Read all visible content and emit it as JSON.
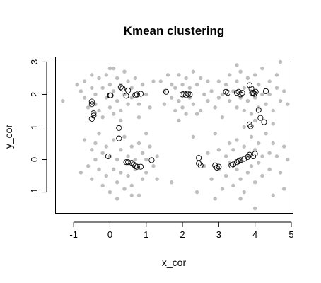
{
  "chart_data": {
    "type": "scatter",
    "title": "Kmean clustering",
    "xlabel": "x_cor",
    "ylabel": "y_cor",
    "xlim": [
      -1.5,
      5.05
    ],
    "ylim": [
      -1.65,
      3.15
    ],
    "xticks": [
      -1,
      0,
      1,
      2,
      3,
      4,
      5
    ],
    "yticks": [
      -1,
      0,
      1,
      2,
      3
    ],
    "grid": false,
    "series": [
      {
        "marker": "filled-circle",
        "color": "#bebebe",
        "points": [
          [
            -1.3,
            1.8
          ],
          [
            -0.9,
            2.3
          ],
          [
            -0.8,
            2.1
          ],
          [
            -0.7,
            2.4
          ],
          [
            -0.7,
            1.9
          ],
          [
            -0.6,
            1.6
          ],
          [
            -0.5,
            2.6
          ],
          [
            -0.5,
            2.2
          ],
          [
            -0.4,
            1.7
          ],
          [
            -0.4,
            2.0
          ],
          [
            -0.3,
            2.5
          ],
          [
            -0.3,
            1.5
          ],
          [
            -0.2,
            2.2
          ],
          [
            -0.2,
            1.3
          ],
          [
            -0.1,
            1.9
          ],
          [
            -0.1,
            2.6
          ],
          [
            0.0,
            2.3
          ],
          [
            0.0,
            1.6
          ],
          [
            0.0,
            2.8
          ],
          [
            0.1,
            2.1
          ],
          [
            0.1,
            1.4
          ],
          [
            0.1,
            2.8
          ],
          [
            0.2,
            2.5
          ],
          [
            0.2,
            1.8
          ],
          [
            0.3,
            2.3
          ],
          [
            0.3,
            1.5
          ],
          [
            0.4,
            2.7
          ],
          [
            0.4,
            2.0
          ],
          [
            0.5,
            2.4
          ],
          [
            0.5,
            1.7
          ],
          [
            0.6,
            2.2
          ],
          [
            0.6,
            1.9
          ],
          [
            0.7,
            2.5
          ],
          [
            0.8,
            1.7
          ],
          [
            0.9,
            2.3
          ],
          [
            1.0,
            2.0
          ],
          [
            1.1,
            1.6
          ],
          [
            1.2,
            2.4
          ],
          [
            0.8,
            1.3
          ],
          [
            0.3,
            1.2
          ],
          [
            1.4,
            2.4
          ],
          [
            1.5,
            2.1
          ],
          [
            1.5,
            1.7
          ],
          [
            1.6,
            2.6
          ],
          [
            1.7,
            1.9
          ],
          [
            1.7,
            2.3
          ],
          [
            1.8,
            1.5
          ],
          [
            1.8,
            2.2
          ],
          [
            1.9,
            2.6
          ],
          [
            1.9,
            1.8
          ],
          [
            2.0,
            2.3
          ],
          [
            2.0,
            1.6
          ],
          [
            2.1,
            2.5
          ],
          [
            2.1,
            1.4
          ],
          [
            2.2,
            2.2
          ],
          [
            2.2,
            1.9
          ],
          [
            2.3,
            2.7
          ],
          [
            2.3,
            1.7
          ],
          [
            2.4,
            2.3
          ],
          [
            2.5,
            1.5
          ],
          [
            2.5,
            2.5
          ],
          [
            2.6,
            2.0
          ],
          [
            2.7,
            1.8
          ],
          [
            2.7,
            2.4
          ],
          [
            2.8,
            2.1
          ],
          [
            2.9,
            1.6
          ],
          [
            3.0,
            2.4
          ],
          [
            3.0,
            1.9
          ],
          [
            1.9,
            1.2
          ],
          [
            2.4,
            1.4
          ],
          [
            3.1,
            2.0
          ],
          [
            3.2,
            2.3
          ],
          [
            3.3,
            1.8
          ],
          [
            3.3,
            2.6
          ],
          [
            3.4,
            2.1
          ],
          [
            3.5,
            1.6
          ],
          [
            3.5,
            2.4
          ],
          [
            3.6,
            2.7
          ],
          [
            3.6,
            1.9
          ],
          [
            3.7,
            2.2
          ],
          [
            3.7,
            1.5
          ],
          [
            3.8,
            2.5
          ],
          [
            3.8,
            1.8
          ],
          [
            3.9,
            2.1
          ],
          [
            3.9,
            1.4
          ],
          [
            4.0,
            2.6
          ],
          [
            4.0,
            1.9
          ],
          [
            4.1,
            2.3
          ],
          [
            4.1,
            1.6
          ],
          [
            4.2,
            2.0
          ],
          [
            4.2,
            2.8
          ],
          [
            4.3,
            1.7
          ],
          [
            4.4,
            2.4
          ],
          [
            4.4,
            2.0
          ],
          [
            4.5,
            1.5
          ],
          [
            4.6,
            2.2
          ],
          [
            4.6,
            2.6
          ],
          [
            4.7,
            1.8
          ],
          [
            4.8,
            2.1
          ],
          [
            4.9,
            1.7
          ],
          [
            4.7,
            3.0
          ],
          [
            3.5,
            2.9
          ],
          [
            4.0,
            1.2
          ],
          [
            3.7,
            1.0
          ],
          [
            4.5,
            1.1
          ],
          [
            -0.7,
            0.6
          ],
          [
            -0.6,
            -0.2
          ],
          [
            -0.5,
            0.3
          ],
          [
            -0.5,
            -0.6
          ],
          [
            -0.4,
            0.0
          ],
          [
            -0.4,
            0.5
          ],
          [
            -0.3,
            -0.3
          ],
          [
            -0.3,
            0.8
          ],
          [
            -0.2,
            0.2
          ],
          [
            -0.2,
            -0.8
          ],
          [
            -0.1,
            0.4
          ],
          [
            -0.1,
            -0.5
          ],
          [
            0.0,
            0.1
          ],
          [
            0.0,
            -1.0
          ],
          [
            0.1,
            0.6
          ],
          [
            0.1,
            -0.3
          ],
          [
            0.2,
            0.0
          ],
          [
            0.2,
            -0.7
          ],
          [
            0.3,
            0.3
          ],
          [
            0.3,
            -0.4
          ],
          [
            0.4,
            0.7
          ],
          [
            0.4,
            -0.9
          ],
          [
            0.5,
            0.1
          ],
          [
            0.5,
            -0.5
          ],
          [
            0.6,
            0.4
          ],
          [
            0.6,
            -0.8
          ],
          [
            0.7,
            0.0
          ],
          [
            0.7,
            -0.3
          ],
          [
            0.8,
            0.5
          ],
          [
            0.8,
            -1.1
          ],
          [
            0.9,
            0.2
          ],
          [
            0.9,
            -0.6
          ],
          [
            1.0,
            0.0
          ],
          [
            1.0,
            -0.4
          ],
          [
            1.1,
            0.4
          ],
          [
            1.2,
            -0.2
          ],
          [
            1.3,
            0.1
          ],
          [
            1.3,
            -0.6
          ],
          [
            1.0,
            0.8
          ],
          [
            0.2,
            -1.2
          ],
          [
            0.6,
            -1.1
          ],
          [
            -0.8,
            -0.4
          ],
          [
            1.7,
            -0.7
          ],
          [
            2.4,
            -1.0
          ],
          [
            2.6,
            -0.2
          ],
          [
            2.7,
            0.2
          ],
          [
            2.8,
            -0.6
          ],
          [
            2.9,
            -1.2
          ],
          [
            3.0,
            0.3
          ],
          [
            3.0,
            -0.3
          ],
          [
            3.1,
            -0.9
          ],
          [
            3.2,
            0.1
          ],
          [
            3.2,
            -0.5
          ],
          [
            3.3,
            0.5
          ],
          [
            3.3,
            -0.1
          ],
          [
            3.4,
            -0.8
          ],
          [
            3.4,
            0.3
          ],
          [
            3.5,
            -0.3
          ],
          [
            3.5,
            0.6
          ],
          [
            3.6,
            0.0
          ],
          [
            3.6,
            -0.6
          ],
          [
            3.7,
            0.4
          ],
          [
            3.7,
            -1.0
          ],
          [
            3.8,
            0.1
          ],
          [
            3.8,
            -0.4
          ],
          [
            3.9,
            0.7
          ],
          [
            3.9,
            -0.2
          ],
          [
            4.0,
            0.3
          ],
          [
            4.0,
            -0.7
          ],
          [
            4.1,
            0.5
          ],
          [
            4.1,
            -0.1
          ],
          [
            4.2,
            0.1
          ],
          [
            4.2,
            -0.5
          ],
          [
            4.3,
            0.8
          ],
          [
            4.4,
            0.2
          ],
          [
            4.4,
            -0.3
          ],
          [
            4.5,
            0.5
          ],
          [
            4.6,
            0.1
          ],
          [
            4.7,
            -0.4
          ],
          [
            4.8,
            0.4
          ],
          [
            4.9,
            0.0
          ],
          [
            4.0,
            -1.5
          ],
          [
            4.5,
            -1.1
          ],
          [
            3.6,
            -1.2
          ],
          [
            4.8,
            -0.9
          ],
          [
            2.9,
            0.8
          ],
          [
            3.1,
            1.3
          ],
          [
            2.3,
            0.7
          ]
        ]
      },
      {
        "marker": "open-circle",
        "color": "#000000",
        "points": [
          [
            -0.5,
            1.78
          ],
          [
            -0.5,
            1.7
          ],
          [
            -0.45,
            1.42
          ],
          [
            -0.45,
            1.35
          ],
          [
            -0.5,
            1.25
          ],
          [
            0.0,
            1.97
          ],
          [
            0.02,
            1.97
          ],
          [
            0.3,
            2.22
          ],
          [
            0.35,
            2.18
          ],
          [
            0.45,
            1.96
          ],
          [
            0.5,
            2.12
          ],
          [
            0.7,
            1.98
          ],
          [
            0.75,
            2.0
          ],
          [
            0.85,
            2.02
          ],
          [
            0.25,
            0.97
          ],
          [
            0.25,
            0.65
          ],
          [
            -0.05,
            0.1
          ],
          [
            0.45,
            -0.08
          ],
          [
            0.5,
            -0.08
          ],
          [
            0.6,
            -0.1
          ],
          [
            0.65,
            -0.15
          ],
          [
            0.7,
            -0.2
          ],
          [
            0.75,
            -0.22
          ],
          [
            0.85,
            -0.22
          ],
          [
            1.15,
            -0.02
          ],
          [
            1.55,
            2.08
          ],
          [
            2.0,
            2.0
          ],
          [
            2.05,
            2.02
          ],
          [
            2.1,
            1.98
          ],
          [
            2.15,
            2.02
          ],
          [
            2.2,
            2.0
          ],
          [
            2.45,
            0.05
          ],
          [
            2.45,
            -0.12
          ],
          [
            2.5,
            -0.18
          ],
          [
            2.9,
            -0.18
          ],
          [
            2.95,
            -0.25
          ],
          [
            3.0,
            -0.22
          ],
          [
            3.2,
            2.08
          ],
          [
            3.25,
            2.05
          ],
          [
            3.5,
            2.05
          ],
          [
            3.55,
            2.08
          ],
          [
            3.6,
            2.0
          ],
          [
            3.65,
            2.05
          ],
          [
            3.85,
            2.28
          ],
          [
            3.9,
            2.18
          ],
          [
            3.92,
            2.05
          ],
          [
            3.95,
            2.05
          ],
          [
            3.98,
            2.02
          ],
          [
            4.02,
            2.08
          ],
          [
            4.1,
            1.52
          ],
          [
            4.15,
            1.28
          ],
          [
            4.25,
            1.15
          ],
          [
            4.3,
            2.1
          ],
          [
            3.85,
            1.08
          ],
          [
            3.88,
            1.02
          ],
          [
            3.35,
            -0.18
          ],
          [
            3.4,
            -0.15
          ],
          [
            3.5,
            -0.08
          ],
          [
            3.55,
            -0.05
          ],
          [
            3.6,
            -0.02
          ],
          [
            3.7,
            0.02
          ],
          [
            3.8,
            0.08
          ],
          [
            3.85,
            0.15
          ],
          [
            3.95,
            0.1
          ],
          [
            4.0,
            0.18
          ]
        ]
      }
    ]
  }
}
